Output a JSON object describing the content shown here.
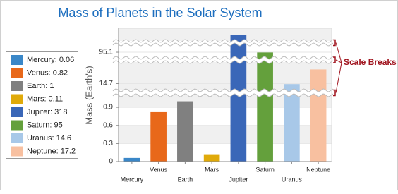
{
  "chart_data": {
    "type": "bar",
    "title": "Mass of Planets in the Solar System",
    "y_label": "Mass (Earth's)",
    "categories": [
      "Mercury",
      "Venus",
      "Earth",
      "Mars",
      "Jupiter",
      "Saturn",
      "Uranus",
      "Neptune"
    ],
    "values": [
      0.06,
      0.82,
      1,
      0.11,
      318,
      95,
      14.6,
      17.2
    ],
    "colors": [
      "#3a87c8",
      "#e8681a",
      "#808080",
      "#e0aa0a",
      "#3a67b8",
      "#64a03c",
      "#a8c8e8",
      "#f8c0a0"
    ],
    "legend_labels": [
      "Mercury: 0.06",
      "Venus: 0.82",
      "Earth: 1",
      "Mars: 0.11",
      "Jupiter: 318",
      "Saturn: 95",
      "Uranus: 14.6",
      "Neptune: 17.2"
    ],
    "ylim": [
      0,
      320
    ],
    "ylim_segments": [
      [
        0,
        1.1
      ],
      [
        13.5,
        18.5
      ],
      [
        93,
        98
      ],
      [
        316,
        320
      ]
    ],
    "yticks": [
      0,
      0.3,
      0.6,
      0.9,
      14.7,
      95.1
    ],
    "annotation": "Scale Breaks",
    "grid": true
  }
}
